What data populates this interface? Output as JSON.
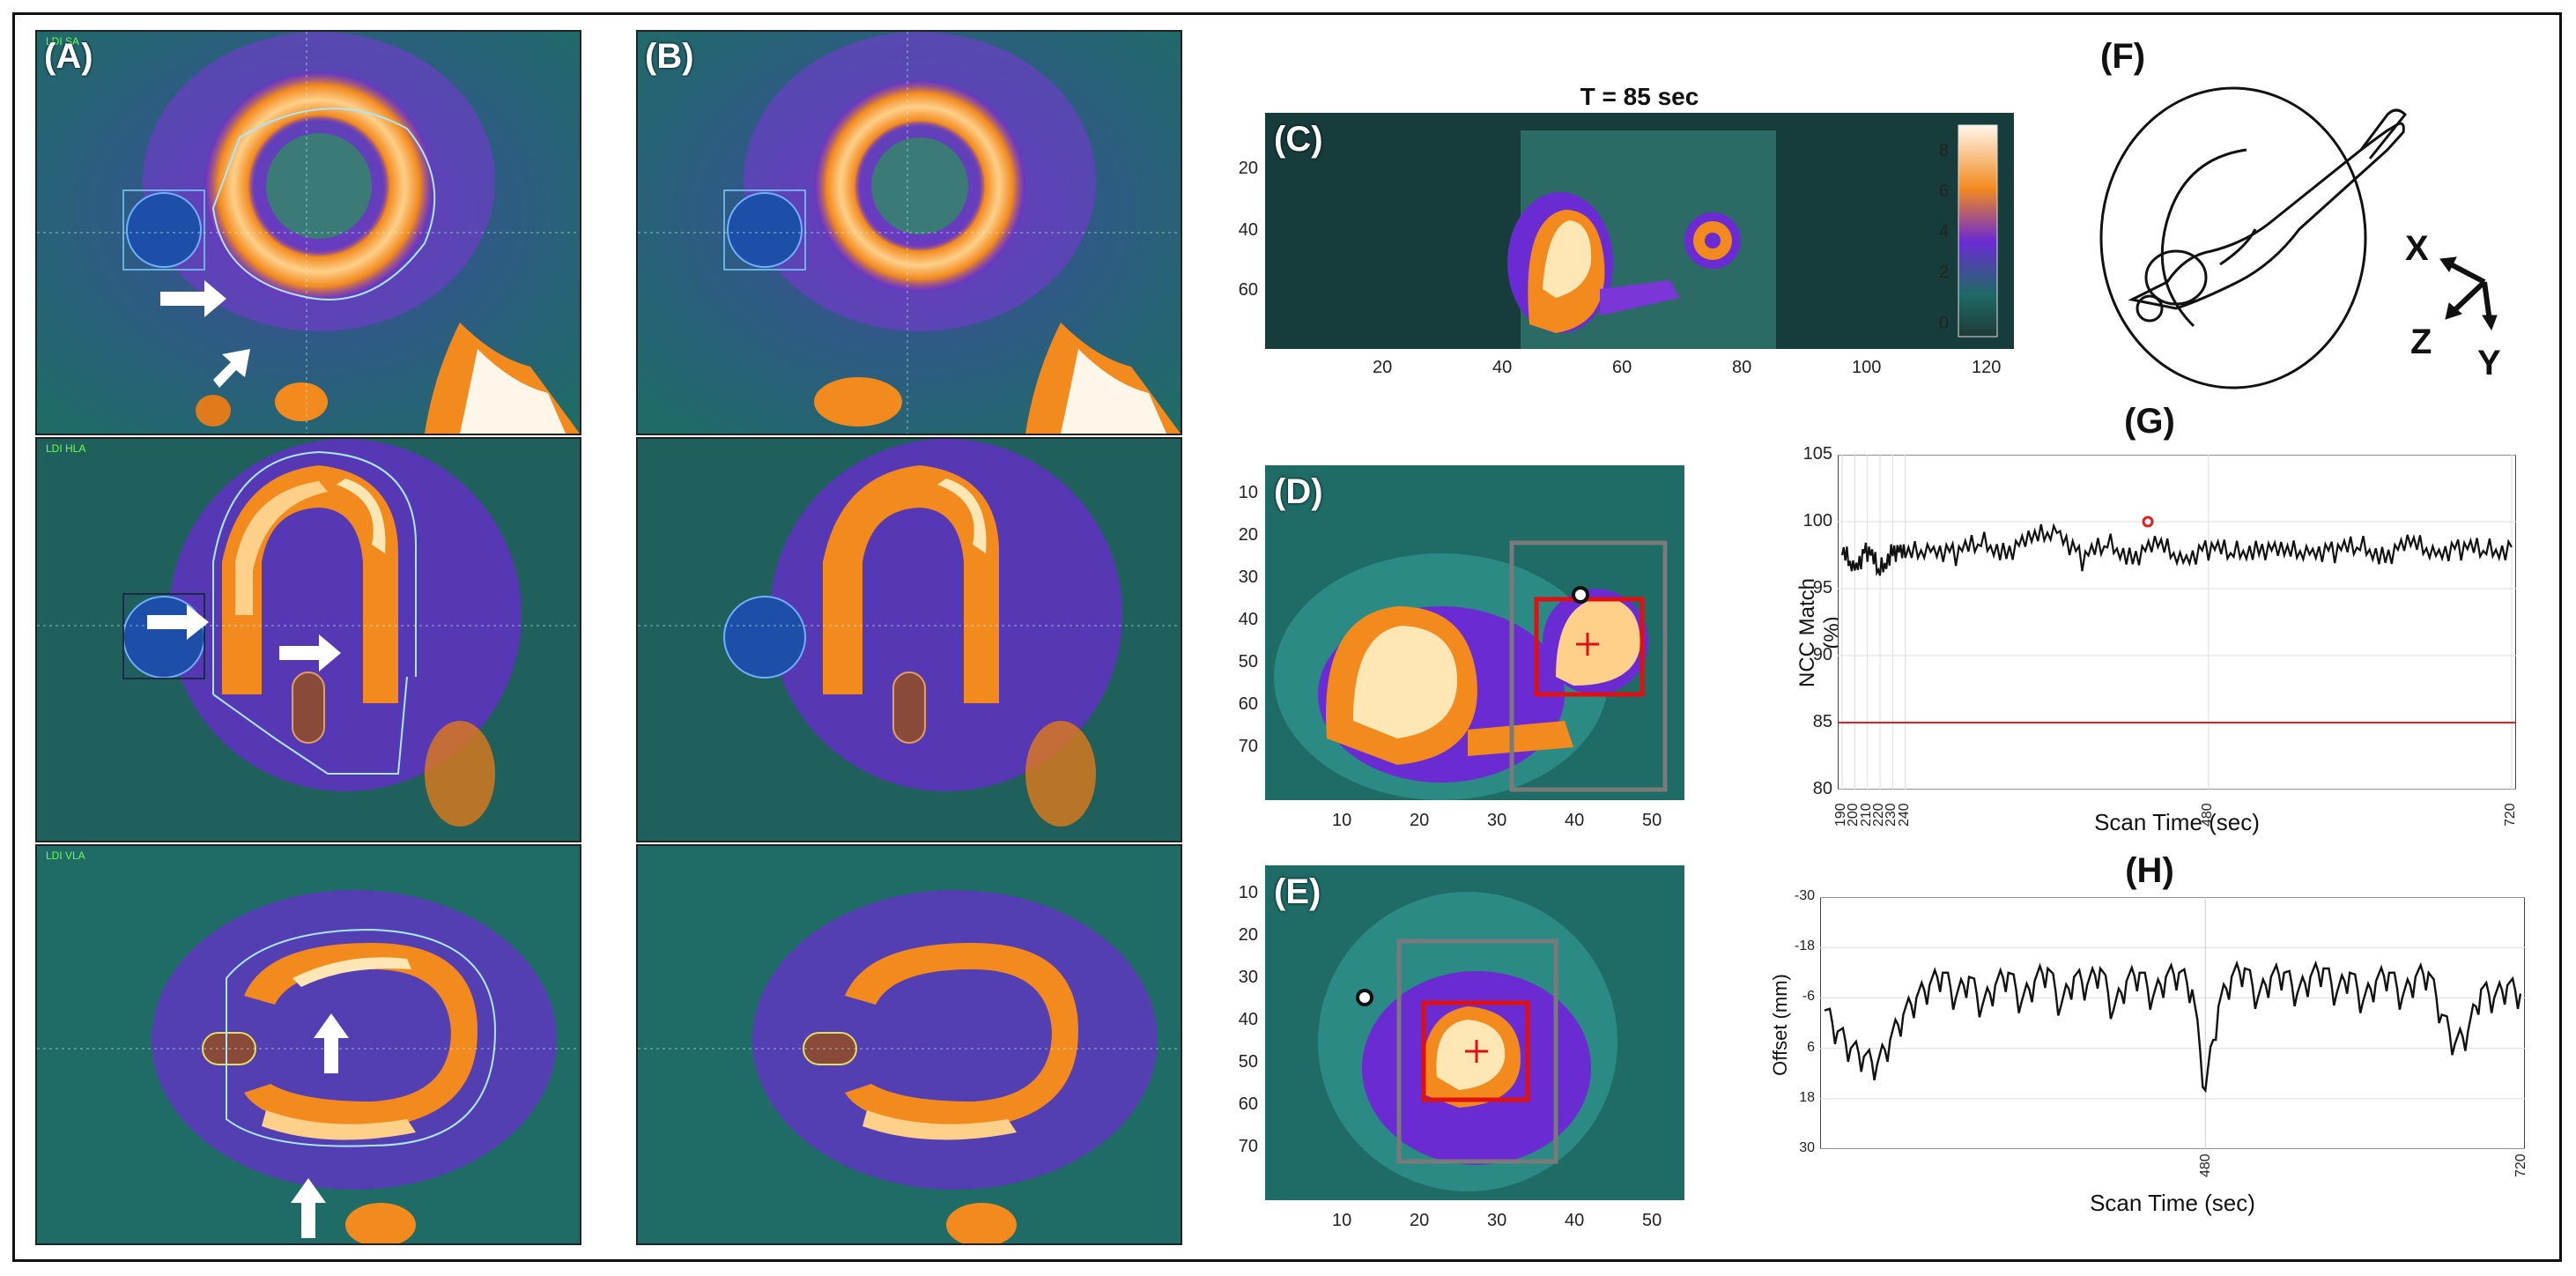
{
  "figure": {
    "panel_labels": {
      "a": "(A)",
      "b": "(B)",
      "c": "(C)",
      "d": "(D)",
      "e": "(E)",
      "f": "(F)",
      "g": "(G)",
      "h": "(H)"
    },
    "view_labels": {
      "sa": "LDI SA",
      "hla": "LDI HLA",
      "vla": "LDI VLA"
    },
    "c_title": "T = 85 sec",
    "c_xticks": [
      "20",
      "40",
      "60",
      "80",
      "100",
      "120"
    ],
    "c_yticks": [
      "20",
      "40",
      "60"
    ],
    "c_colorbar_ticks": [
      "8",
      "6",
      "4",
      "2",
      "0"
    ],
    "de_xticks": [
      "10",
      "20",
      "30",
      "40",
      "50"
    ],
    "de_yticks": [
      "10",
      "20",
      "30",
      "40",
      "50",
      "60",
      "70"
    ],
    "axes_f": {
      "x": "X",
      "z": "Z",
      "y": "Y"
    },
    "colors": {
      "hot": "#ffe7b5",
      "orange": "#f28a1e",
      "purple": "#6a2bd3",
      "teal": "#1f6b66",
      "blue_roi": "#1e4fa8"
    }
  },
  "chart_data": [
    {
      "type": "line",
      "title": "(G)",
      "xlabel": "Scan Time (sec)",
      "ylabel": "NCC Match (%)",
      "ylim": [
        80,
        105
      ],
      "yticks": [
        "105",
        "100",
        "95",
        "90",
        "85",
        "80"
      ],
      "xticks": [
        "190",
        "200",
        "210",
        "220",
        "230",
        "240",
        "480",
        "720"
      ],
      "xlim": [
        190,
        720
      ],
      "threshold": 85,
      "series": [
        {
          "name": "NCC match",
          "x": [
            190,
            200,
            210,
            220,
            230,
            240,
            260,
            280,
            300,
            320,
            340,
            360,
            380,
            400,
            420,
            440,
            460,
            480,
            500,
            520,
            540,
            560,
            580,
            600,
            620,
            640,
            660,
            680,
            700,
            720
          ],
          "values": [
            97.5,
            96.8,
            97.9,
            96.2,
            98.1,
            97.3,
            98.2,
            97.6,
            98.4,
            97.9,
            98.5,
            99.6,
            97.2,
            98.3,
            97.5,
            98.1,
            97.4,
            98.0,
            97.6,
            98.2,
            97.5,
            98.0,
            97.8,
            98.1,
            97.6,
            98.2,
            97.9,
            98.0,
            97.8,
            98.1
          ]
        }
      ],
      "marker": {
        "x": 432,
        "y": 100
      }
    },
    {
      "type": "line",
      "title": "(H)",
      "xlabel": "Scan Time (sec)",
      "ylabel": "Offset (mm)",
      "ylim": [
        -30,
        30
      ],
      "yticks": [
        "-30",
        "-18",
        "-6",
        "6",
        "18",
        "30"
      ],
      "xticks": [
        "480",
        "720"
      ],
      "xlim": [
        190,
        720
      ],
      "series": [
        {
          "name": "Offset",
          "x": [
            190,
            200,
            210,
            220,
            230,
            240,
            250,
            260,
            270,
            280,
            290,
            300,
            310,
            320,
            330,
            340,
            350,
            360,
            370,
            380,
            390,
            400,
            410,
            420,
            430,
            440,
            450,
            460,
            470,
            480,
            490,
            500,
            510,
            520,
            530,
            540,
            550,
            560,
            570,
            580,
            590,
            600,
            610,
            620,
            630,
            640,
            650,
            660,
            670,
            680,
            690,
            700,
            710,
            720
          ],
          "values": [
            -3,
            2,
            6,
            8,
            10,
            4,
            -2,
            -6,
            -9,
            -12,
            -6,
            -11,
            -4,
            -9,
            -12,
            -5,
            -10,
            -13,
            -4,
            -11,
            -9,
            -13,
            -3,
            -10,
            -12,
            -6,
            -11,
            -12,
            -8,
            16,
            -4,
            -11,
            -13,
            -6,
            -11,
            -12,
            -7,
            -11,
            -13,
            -7,
            -12,
            -5,
            -10,
            -12,
            -6,
            -11,
            -12,
            -2,
            5,
            2,
            -8,
            -6,
            -9,
            -7
          ]
        }
      ]
    }
  ]
}
